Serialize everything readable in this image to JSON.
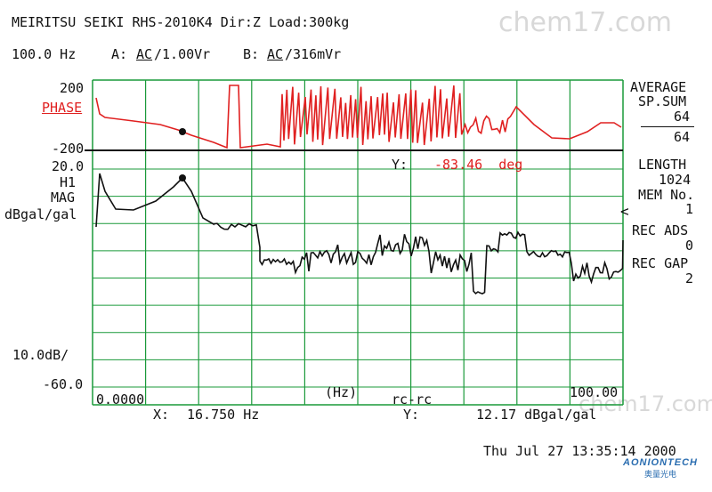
{
  "header": {
    "line1": "MEIRITSU SEIKI RHS-2010K4 Dir:Z Load:300kg",
    "freq": "100.0 Hz",
    "chan_a_prefix": "A:",
    "chan_a_mode": "AC",
    "chan_a_range": "/1.00Vr",
    "chan_b_prefix": "B:",
    "chan_b_mode": "AC",
    "chan_b_range": "/316mVr"
  },
  "phase_panel": {
    "top_label": "200",
    "name": "PHASE",
    "bottom_label": "-200",
    "cursor_label": "Y:",
    "cursor_value": "-83.46  deg"
  },
  "mag_panel": {
    "top_label": "20.0",
    "name1": "H1",
    "name2": "MAG",
    "unit": "dBgal/gal",
    "scale": "10.0dB/",
    "bottom_label": "-60.0"
  },
  "right_panel": {
    "average": "AVERAGE",
    "sp_sum": "SP.SUM",
    "avg_num": "64",
    "avg_den": "64",
    "length_label": "LENGTH",
    "length_value": "1024",
    "mem_label": "MEM No.",
    "mem_value": "1",
    "rec_ads_label": "REC ADS",
    "rec_ads_value": "0",
    "rec_gap_label": "REC GAP",
    "rec_gap_value": "2",
    "marker": "<"
  },
  "x_axis": {
    "start": "0.0000",
    "unit": "(Hz)",
    "mode": "rc-rc",
    "end": "100.00"
  },
  "cursor": {
    "x_label": "X:",
    "x_value": "16.750 Hz",
    "y_label": "Y:",
    "y_value": "12.17 dBgal/gal"
  },
  "footer": {
    "timestamp": "Thu Jul 27 13:35:14 2000"
  },
  "watermark": {
    "text": "chem17.com"
  },
  "logo": {
    "name": "AONIONTECH",
    "sub": "奥量光电"
  },
  "colors": {
    "phase_trace": "#e02020",
    "mag_trace": "#111111",
    "grid": "#1a9a3a"
  }
}
